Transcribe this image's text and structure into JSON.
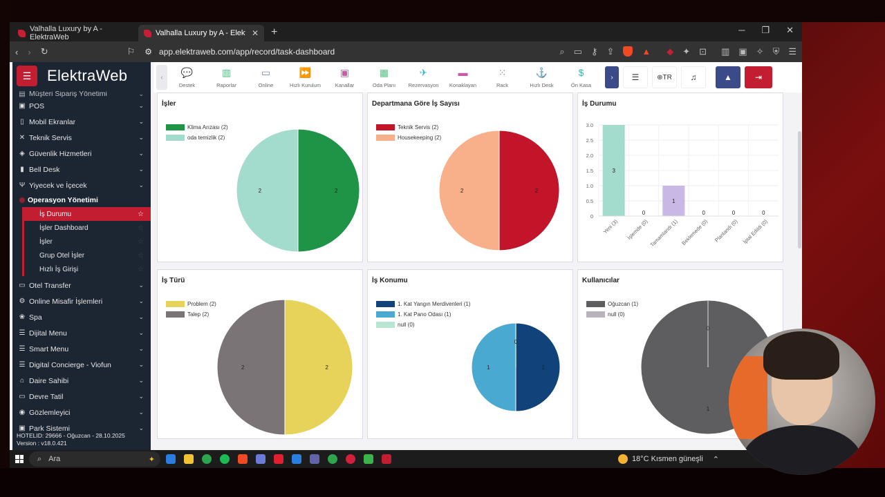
{
  "browser": {
    "tabs": [
      {
        "title": "Valhalla Luxury by A - ElektraWeb",
        "active": false
      },
      {
        "title": "Valhalla Luxury by A - ElektraWeb",
        "active": true
      }
    ],
    "url": "app.elektraweb.com/app/record/task-dashboard",
    "notif_count": "1"
  },
  "sidebar": {
    "logo": "ElektraWeb",
    "items_top": [
      {
        "label": "Müşteri Sipariş Yönetimi",
        "icon": "▤"
      },
      {
        "label": "POS",
        "icon": "▣"
      },
      {
        "label": "Mobil Ekranlar",
        "icon": "▯"
      },
      {
        "label": "Teknik Servis",
        "icon": "✕"
      },
      {
        "label": "Güvenlik Hizmetleri",
        "icon": "◈"
      },
      {
        "label": "Bell Desk",
        "icon": "▮"
      },
      {
        "label": "Yiyecek ve İçecek",
        "icon": "Ψ"
      }
    ],
    "section_title": "Operasyon Yönetimi",
    "sub_items": [
      {
        "label": "İş Durumu",
        "active": true
      },
      {
        "label": "İşler Dashboard",
        "active": false
      },
      {
        "label": "İşler",
        "active": false
      },
      {
        "label": "Grup Otel İşler",
        "active": false
      },
      {
        "label": "Hızlı İş Girişi",
        "active": false
      }
    ],
    "items_bottom": [
      {
        "label": "Otel Transfer",
        "icon": "▭"
      },
      {
        "label": "Online Misafir İşlemleri",
        "icon": "⚙"
      },
      {
        "label": "Spa",
        "icon": "❀"
      },
      {
        "label": "Dijital Menu",
        "icon": "☰"
      },
      {
        "label": "Smart Menu",
        "icon": "☰"
      },
      {
        "label": "Digital Concierge - Viofun",
        "icon": "☰"
      },
      {
        "label": "Daire Sahibi",
        "icon": "⌂"
      },
      {
        "label": "Devre Tatil",
        "icon": "▭"
      },
      {
        "label": "Gözlemleyici",
        "icon": "◉"
      },
      {
        "label": "Park Sistemi",
        "icon": "▣"
      }
    ],
    "footer_line1": "HOTELID: 29666 - Oğuzcan - 28.10.2025",
    "footer_line2": "Version : v18.0.421"
  },
  "toolbar": {
    "items": [
      {
        "label": "Destek",
        "icon": "💬",
        "color": "#e06a5a"
      },
      {
        "label": "Raporlar",
        "icon": "▥",
        "color": "#6bc08c"
      },
      {
        "label": "Online",
        "icon": "▭",
        "color": "#7a86c8"
      },
      {
        "label": "Hızlı Kurulum",
        "icon": "⏩",
        "color": "#4a7fd0"
      },
      {
        "label": "Kanallar",
        "icon": "▣",
        "color": "#c85aa8"
      },
      {
        "label": "Oda Planı",
        "icon": "▦",
        "color": "#6bc08c"
      },
      {
        "label": "Rezervasyon",
        "icon": "✈",
        "color": "#3fb6c8"
      },
      {
        "label": "Konaklayan",
        "icon": "▬",
        "color": "#c85aa8"
      },
      {
        "label": "Rack",
        "icon": "⁙",
        "color": "#8a8a9a"
      },
      {
        "label": "Hızlı Desk",
        "icon": "⚓",
        "color": "#4a7fd0"
      },
      {
        "label": "Ön Kasa",
        "icon": "$",
        "color": "#3fb6a8"
      }
    ],
    "lang": "TR"
  },
  "chart_data": [
    {
      "type": "pie",
      "title": "İşler",
      "labels": [
        "Klima Arızası",
        "oda temizlik"
      ],
      "legend": [
        "Klima Arızası (2)",
        "oda temizlik (2)"
      ],
      "values": [
        2,
        2
      ],
      "colors": [
        "#1f9446",
        "#a3dccd"
      ]
    },
    {
      "type": "pie",
      "title": "Departmana Göre İş Sayısı",
      "labels": [
        "Teknik Servis",
        "Housekeeping"
      ],
      "legend": [
        "Teknik Servis (2)",
        "Housekeeping (2)"
      ],
      "values": [
        2,
        2
      ],
      "colors": [
        "#c3152a",
        "#f7b08a"
      ]
    },
    {
      "type": "bar",
      "title": "İş Durumu",
      "categories": [
        "Yeni (3)",
        "İşlemde (0)",
        "Tamamlandı (1)",
        "Beklemede (0)",
        "Planlandı (0)",
        "İptal Edildi (0)"
      ],
      "values": [
        3,
        0,
        1,
        0,
        0,
        0
      ],
      "colors": [
        "#a3dccd",
        "#a3dccd",
        "#c9b8e6",
        "#a3dccd",
        "#a3dccd",
        "#a3dccd"
      ],
      "ylim": [
        0,
        3
      ],
      "yticks": [
        "0",
        "0.5",
        "1.0",
        "1.5",
        "2.0",
        "2.5",
        "3.0"
      ]
    },
    {
      "type": "pie",
      "title": "İş Türü",
      "labels": [
        "Problem",
        "Talep"
      ],
      "legend": [
        "Problem (2)",
        "Talep (2)"
      ],
      "values": [
        2,
        2
      ],
      "colors": [
        "#e8d35a",
        "#7a7476"
      ]
    },
    {
      "type": "pie",
      "title": "İş Konumu",
      "labels": [
        "1. Kat Yangın Merdivenleri",
        "1. Kat Pano Odası",
        "null"
      ],
      "legend": [
        "1. Kat Yangın Merdivenleri (1)",
        "1. Kat Pano Odası (1)",
        "null (0)"
      ],
      "values": [
        1,
        1,
        0
      ],
      "colors": [
        "#11427a",
        "#4aa9d0",
        "#b8e6d2"
      ]
    },
    {
      "type": "pie",
      "title": "Kullanıcılar",
      "labels": [
        "Oğuzcan",
        "null"
      ],
      "legend": [
        "Oğuzcan (1)",
        "null (0)"
      ],
      "values": [
        1,
        0
      ],
      "colors": [
        "#5e5e60",
        "#b9b3bd"
      ]
    }
  ],
  "taskbar": {
    "search_placeholder": "Ara",
    "weather": "18°C  Kısmen güneşli"
  }
}
